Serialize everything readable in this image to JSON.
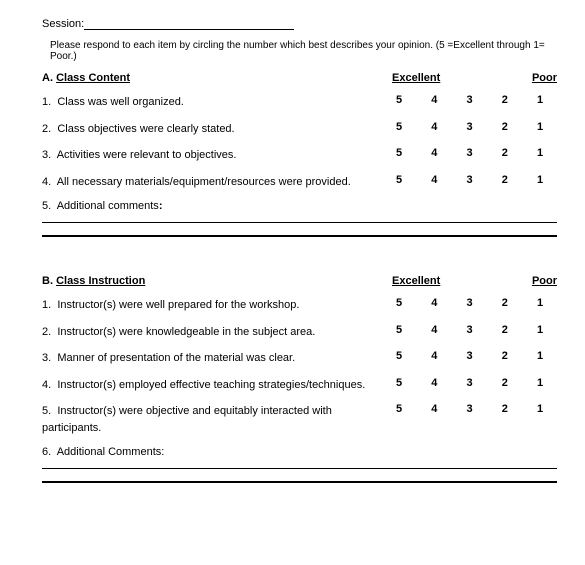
{
  "session": {
    "label": "Session:"
  },
  "instructions": "Please respond to each item by circling the number which best describes your opinion.  (5 =Excellent through 1= Poor.)",
  "scale": {
    "high": "Excellent",
    "low": "Poor"
  },
  "ratings": [
    "5",
    "4",
    "3",
    "2",
    "1"
  ],
  "sections": [
    {
      "letter": "A.",
      "title": "Class Content",
      "items": [
        {
          "num": "1.",
          "text": "Class was well organized."
        },
        {
          "num": "2.",
          "text": "Class objectives were clearly stated."
        },
        {
          "num": "3.",
          "text": "Activities were relevant to objectives."
        },
        {
          "num": "4.",
          "text": "All necessary materials/equipment/resources were provided."
        }
      ],
      "comments": {
        "num": "5.",
        "label": "Additional comments",
        "colon_bold": true
      }
    },
    {
      "letter": "B.",
      "title": "Class Instruction",
      "items": [
        {
          "num": "1.",
          "text": "Instructor(s) were well prepared for the workshop."
        },
        {
          "num": "2.",
          "text": "Instructor(s) were knowledgeable in the subject area."
        },
        {
          "num": "3.",
          "text": "Manner of presentation of the material was clear."
        },
        {
          "num": "4.",
          "text": "Instructor(s) employed effective teaching strategies/techniques."
        },
        {
          "num": "5.",
          "text": "Instructor(s) were objective and equitably interacted with participants."
        }
      ],
      "comments": {
        "num": "6.",
        "label": "Additional Comments:",
        "colon_bold": false
      }
    }
  ]
}
